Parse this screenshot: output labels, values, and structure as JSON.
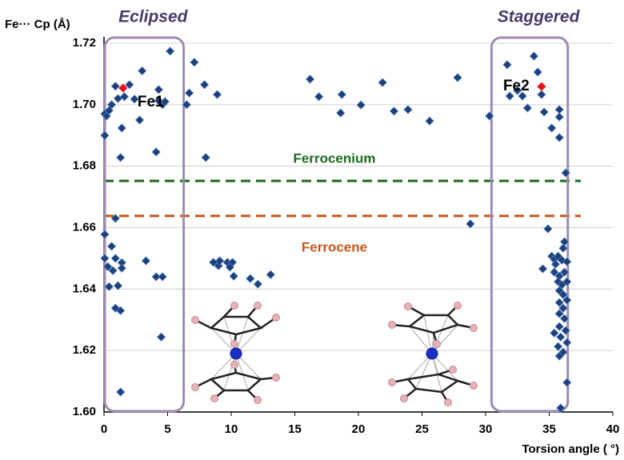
{
  "chart_data": {
    "type": "scatter",
    "y_label": "Fe··· Cp  (Å)",
    "x_label": "Torsion angle ( °)",
    "xlim": [
      0,
      40
    ],
    "ylim": [
      1.6,
      1.72
    ],
    "xticks": [
      0,
      5,
      10,
      15,
      20,
      25,
      30,
      35,
      40
    ],
    "yticks": [
      {
        "value": 1.6,
        "label": "1.60"
      },
      1.62,
      1.64,
      1.66,
      1.68,
      {
        "value": 1.7,
        "label": "1.70"
      },
      1.72
    ],
    "grid": true,
    "series": [
      {
        "color": "#1f3f7a",
        "x": [
          0.06,
          0.2,
          0.06,
          0.4,
          0.6,
          0.9,
          1.1,
          1.6,
          2.0,
          2.4,
          3.0,
          2.8,
          1.4,
          1.3,
          4.1,
          4.3,
          4.3,
          4.6,
          4.8,
          5.2,
          0.06,
          0.9,
          0.06,
          0.6,
          0.3,
          0.7,
          0.9,
          1.4,
          1.4,
          0.4,
          1.1,
          0.9,
          1.3,
          3.3,
          4.1,
          4.6,
          4.5,
          1.3,
          6.5,
          6.7,
          7.1,
          7.9,
          8.0,
          8.9,
          8.6,
          9.0,
          9.1,
          9.7,
          10.1,
          10.2,
          9.9,
          11.5,
          12.1,
          13.1,
          16.2,
          16.9,
          18.7,
          18.6,
          20.2,
          21.9,
          22.8,
          23.9,
          25.6,
          27.8,
          28.8,
          30.3,
          31.7,
          31.9,
          32.5,
          32.9,
          33.3,
          33.8,
          34.1,
          34.4,
          34.6,
          35.2,
          35.8,
          35.8,
          35.8,
          36.3,
          34.9,
          34.5,
          36.2,
          36.1,
          35.2,
          35.4,
          35.7,
          36.0,
          36.4,
          35.5,
          35.4,
          35.8,
          36.2,
          35.7,
          36.0,
          36.4,
          35.8,
          36.1,
          36.4,
          35.8,
          36.1,
          35.8,
          36.2,
          35.8,
          36.3,
          35.4,
          35.9,
          36.4,
          35.7,
          36.1,
          35.8,
          36.4,
          35.9
        ],
        "values": [
          1.697,
          1.6963,
          1.69,
          1.6981,
          1.7,
          1.706,
          1.702,
          1.7026,
          1.7065,
          1.7018,
          1.711,
          1.695,
          1.6924,
          1.6828,
          1.6846,
          1.7049,
          1.7013,
          1.7,
          1.701,
          1.7174,
          1.6578,
          1.663,
          1.65,
          1.6539,
          1.6473,
          1.646,
          1.65,
          1.6486,
          1.6468,
          1.6408,
          1.6411,
          1.6338,
          1.633,
          1.6492,
          1.644,
          1.644,
          1.6244,
          1.6065,
          1.7,
          1.7038,
          1.7138,
          1.7065,
          1.6828,
          1.7033,
          1.6487,
          1.6476,
          1.6492,
          1.6487,
          1.6487,
          1.6442,
          1.6471,
          1.6434,
          1.6416,
          1.6447,
          1.7083,
          1.7026,
          1.7033,
          1.6973,
          1.6999,
          1.7072,
          1.6979,
          1.6984,
          1.6947,
          1.7088,
          1.6612,
          1.6963,
          1.713,
          1.7028,
          1.7046,
          1.7028,
          1.6989,
          1.7158,
          1.7106,
          1.7033,
          1.6976,
          1.6924,
          1.6893,
          1.6984,
          1.696,
          1.6778,
          1.6596,
          1.6466,
          1.6554,
          1.6533,
          1.6507,
          1.6497,
          1.6507,
          1.6494,
          1.6489,
          1.6481,
          1.6455,
          1.6442,
          1.6455,
          1.6424,
          1.6414,
          1.6424,
          1.6395,
          1.6382,
          1.6364,
          1.6356,
          1.6338,
          1.632,
          1.6304,
          1.6278,
          1.6265,
          1.6257,
          1.6244,
          1.6226,
          1.6213,
          1.6195,
          1.6182,
          1.6096,
          1.6013
        ]
      },
      {
        "name": "Fe1",
        "color": "#e8141c",
        "x": [
          1.5
        ],
        "values": [
          1.7054
        ]
      },
      {
        "name": "Fe2",
        "color": "#e8141c",
        "x": [
          34.4
        ],
        "values": [
          1.7059
        ]
      }
    ],
    "ref_lines": [
      {
        "label": "Ferrocenium",
        "value": 1.6752,
        "color": "#1e6b1e"
      },
      {
        "label": "Ferrocene",
        "value": 1.6638,
        "color": "#c4561a"
      }
    ],
    "regions": [
      {
        "label": "Eclipsed",
        "x": [
          0,
          6.2
        ]
      },
      {
        "label": "Staggered",
        "x": [
          30.4,
          36.4
        ]
      }
    ]
  }
}
